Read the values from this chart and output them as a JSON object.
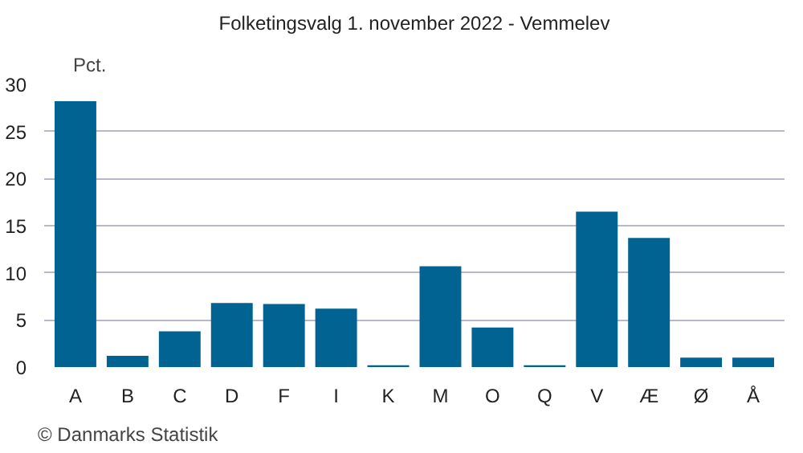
{
  "chart_data": {
    "type": "bar",
    "title": "Folketingsvalg 1. november 2022 - Vemmelev",
    "ylabel": "Pct.",
    "categories": [
      "A",
      "B",
      "C",
      "D",
      "F",
      "I",
      "K",
      "M",
      "O",
      "Q",
      "V",
      "Æ",
      "Ø",
      "Å"
    ],
    "values": [
      28.2,
      1.2,
      3.8,
      6.8,
      6.7,
      6.2,
      0.2,
      10.7,
      4.2,
      0.2,
      16.5,
      13.7,
      1.0,
      1.0
    ],
    "color": "#006391",
    "ylim": [
      0,
      30
    ],
    "yticks": [
      0,
      5,
      10,
      15,
      20,
      25,
      30
    ],
    "grid": "y",
    "annotations": [
      "© Danmarks Statistik"
    ]
  }
}
